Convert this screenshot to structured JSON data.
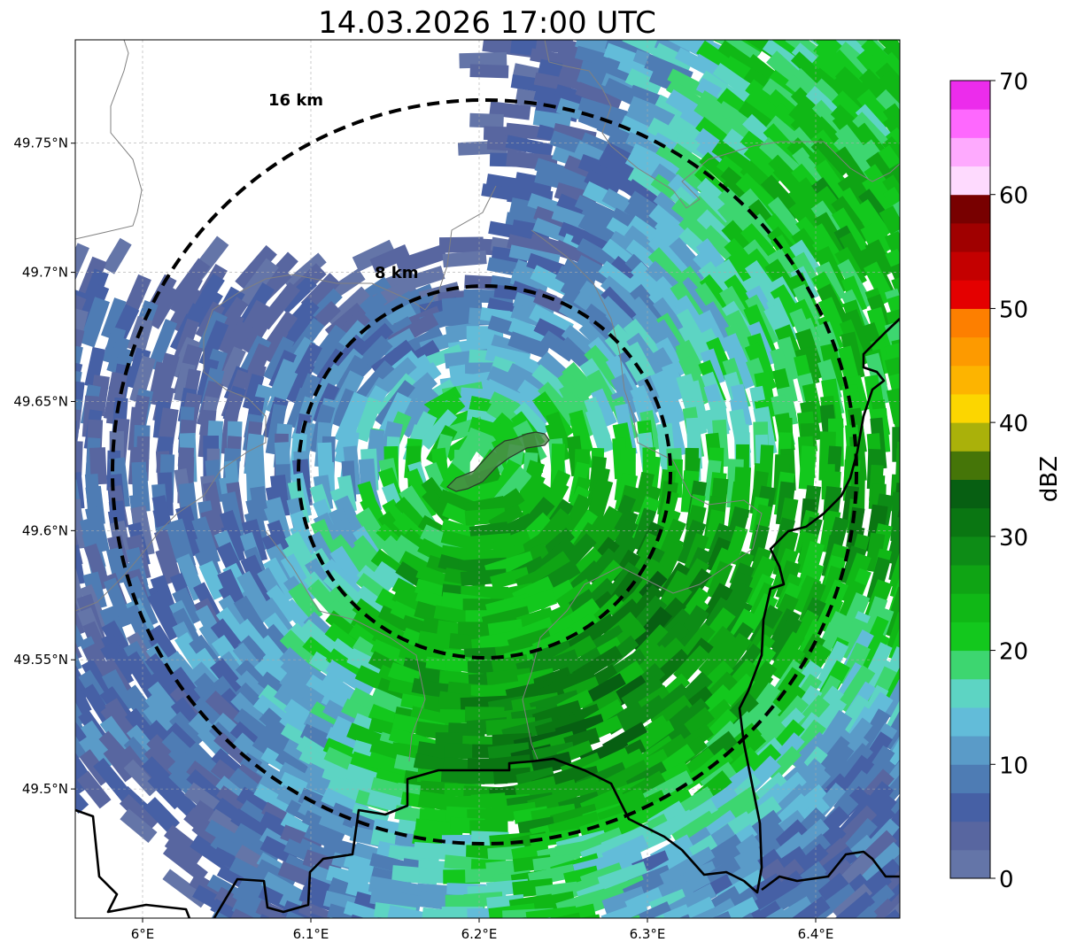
{
  "chart_data": {
    "type": "heatmap",
    "title": "14.03.2026 17:00 UTC",
    "xlim": [
      5.96,
      6.45
    ],
    "ylim": [
      49.45,
      49.79
    ],
    "x_ticks": [
      {
        "value": 6.0,
        "label": "6°E"
      },
      {
        "value": 6.1,
        "label": "6.1°E"
      },
      {
        "value": 6.2,
        "label": "6.2°E"
      },
      {
        "value": 6.3,
        "label": "6.3°E"
      },
      {
        "value": 6.4,
        "label": "6.4°E"
      }
    ],
    "y_ticks": [
      {
        "value": 49.75,
        "label": "49.75°N"
      },
      {
        "value": 49.7,
        "label": "49.7°N"
      },
      {
        "value": 49.65,
        "label": "49.65°N"
      },
      {
        "value": 49.6,
        "label": "49.6°N"
      },
      {
        "value": 49.55,
        "label": "49.55°N"
      },
      {
        "value": 49.5,
        "label": "49.5°N"
      }
    ],
    "grid": true,
    "radar_center": {
      "lon": 6.2,
      "lat": 49.625
    },
    "range_rings": [
      {
        "km": 8,
        "label": "8 km"
      },
      {
        "km": 16,
        "label": "16 km"
      }
    ],
    "reflectivity_grid_dbz": {
      "note_rows": "north to south, columns west to east, -1 = no echo",
      "rows": [
        [
          -1,
          -1,
          -1,
          -1,
          5,
          12,
          20,
          20
        ],
        [
          -1,
          -1,
          -1,
          -1,
          6,
          10,
          22,
          24
        ],
        [
          5,
          5,
          5,
          8,
          9,
          12,
          18,
          22
        ],
        [
          5,
          6,
          10,
          18,
          20,
          16,
          18,
          25
        ],
        [
          5,
          8,
          15,
          24,
          26,
          28,
          26,
          28
        ],
        [
          6,
          10,
          18,
          26,
          24,
          30,
          26,
          20
        ],
        [
          8,
          8,
          14,
          28,
          31,
          28,
          22,
          10
        ],
        [
          -1,
          5,
          8,
          14,
          22,
          12,
          10,
          6
        ]
      ]
    },
    "colorbar": {
      "label": "dBZ",
      "min": 0,
      "max": 70,
      "step": 2.5,
      "ticks": [
        0,
        10,
        20,
        30,
        40,
        50,
        60,
        70
      ],
      "colors": [
        "#6475a8",
        "#5866a0",
        "#4660a5",
        "#4e7cb4",
        "#5a9bc8",
        "#62bcd9",
        "#5dd4c3",
        "#3dd670",
        "#13c81d",
        "#10b816",
        "#0fa414",
        "#0d8c16",
        "#0a7612",
        "#075f12",
        "#457508",
        "#aab10a",
        "#fcd600",
        "#fdb400",
        "#fd9a00",
        "#fd7f00",
        "#e40000",
        "#c40000",
        "#a00000",
        "#780000",
        "#fedafe",
        "#feaafe",
        "#fe68fe",
        "#ec2cec"
      ]
    }
  }
}
